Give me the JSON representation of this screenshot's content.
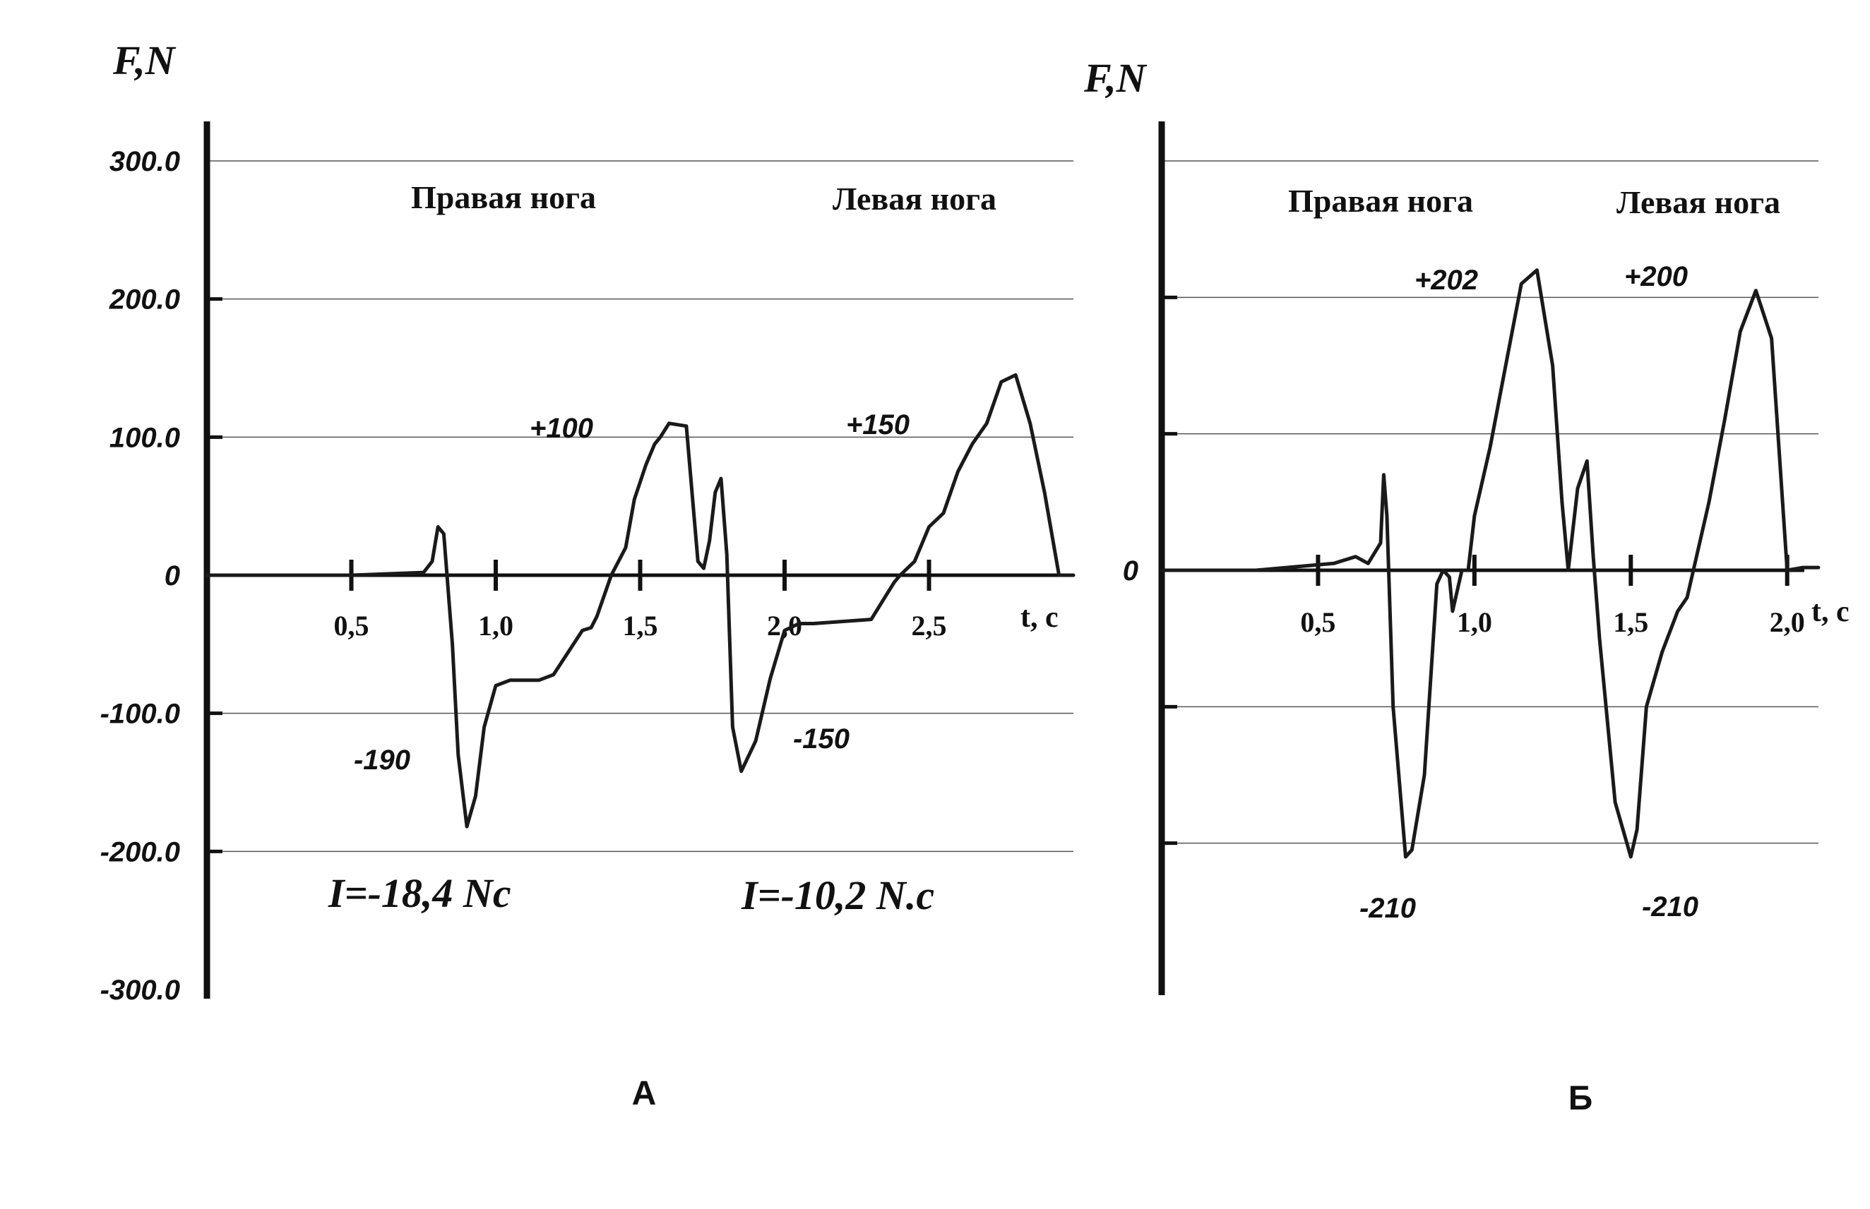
{
  "chart_data": [
    {
      "panel": "A",
      "type": "line",
      "panel_label": "А",
      "ylabel": "F,N",
      "xlabel": "t, c",
      "ylim": [
        -300,
        300
      ],
      "xlim": [
        0,
        3.0
      ],
      "yticks": [
        300,
        200,
        100,
        0,
        -100,
        -200,
        -300
      ],
      "ytick_labels": [
        "300.0",
        "200.0",
        "100.0",
        "0",
        "-100.0",
        "-200.0",
        "-300.0"
      ],
      "xticks": [
        0.5,
        1.0,
        1.5,
        2.0,
        2.5
      ],
      "xtick_labels": [
        "0,5",
        "1,0",
        "1,5",
        "2,0",
        "2,5"
      ],
      "grid": true,
      "region_labels": [
        "Правая нога",
        "Левая нога"
      ],
      "annotations": [
        "+100",
        "+150",
        "-190",
        "-150"
      ],
      "impulse_labels": [
        "I=-18,4 Nc",
        "I=-10,2 N.c"
      ],
      "x": [
        0,
        0.2,
        0.5,
        0.75,
        0.78,
        0.8,
        0.82,
        0.85,
        0.87,
        0.9,
        0.93,
        0.96,
        1.0,
        1.05,
        1.15,
        1.2,
        1.3,
        1.33,
        1.35,
        1.4,
        1.45,
        1.48,
        1.52,
        1.55,
        1.57,
        1.6,
        1.66,
        1.7,
        1.72,
        1.74,
        1.76,
        1.78,
        1.8,
        1.82,
        1.85,
        1.9,
        1.95,
        2.0,
        2.05,
        2.1,
        2.3,
        2.35,
        2.38,
        2.4,
        2.45,
        2.5,
        2.55,
        2.6,
        2.65,
        2.7,
        2.75,
        2.8,
        2.85,
        2.9,
        2.95,
        3.0
      ],
      "y": [
        0,
        0,
        0,
        2,
        10,
        35,
        30,
        -50,
        -130,
        -182,
        -160,
        -110,
        -80,
        -76,
        -76,
        -72,
        -40,
        -38,
        -30,
        0,
        20,
        55,
        80,
        95,
        100,
        110,
        108,
        10,
        5,
        25,
        60,
        70,
        15,
        -110,
        -142,
        -120,
        -75,
        -40,
        -35,
        -35,
        -32,
        -15,
        -5,
        0,
        10,
        35,
        45,
        75,
        95,
        110,
        140,
        145,
        110,
        60,
        0,
        0
      ]
    },
    {
      "panel": "Б",
      "type": "line",
      "panel_label": "Б",
      "ylabel": "F,N",
      "xlabel": "t, c",
      "ylim": [
        -300,
        300
      ],
      "xlim": [
        0,
        2.1
      ],
      "yticks": [
        0
      ],
      "ytick_labels": [
        "0"
      ],
      "xticks": [
        0.5,
        1.0,
        1.5,
        2.0
      ],
      "xtick_labels": [
        "0,5",
        "1,0",
        "1,5",
        "2,0"
      ],
      "grid": true,
      "region_labels": [
        "Правая нога",
        "Левая нога"
      ],
      "annotations": [
        "+202",
        "+200",
        "-210",
        "-210"
      ],
      "x": [
        0,
        0.3,
        0.55,
        0.62,
        0.66,
        0.7,
        0.71,
        0.72,
        0.74,
        0.78,
        0.8,
        0.84,
        0.88,
        0.9,
        0.92,
        0.93,
        0.94,
        0.96,
        0.98,
        1.0,
        1.05,
        1.1,
        1.15,
        1.2,
        1.25,
        1.28,
        1.3,
        1.33,
        1.36,
        1.38,
        1.4,
        1.45,
        1.5,
        1.52,
        1.55,
        1.6,
        1.65,
        1.68,
        1.7,
        1.75,
        1.8,
        1.85,
        1.9,
        1.95,
        2.0,
        2.05,
        2.1
      ],
      "y": [
        0,
        0,
        5,
        10,
        5,
        20,
        70,
        40,
        -100,
        -210,
        -205,
        -150,
        -10,
        0,
        -5,
        -30,
        -20,
        0,
        0,
        40,
        90,
        150,
        210,
        220,
        150,
        50,
        0,
        60,
        80,
        10,
        -50,
        -170,
        -210,
        -190,
        -100,
        -60,
        -30,
        -20,
        0,
        50,
        110,
        175,
        205,
        170,
        0,
        2,
        2
      ]
    }
  ]
}
